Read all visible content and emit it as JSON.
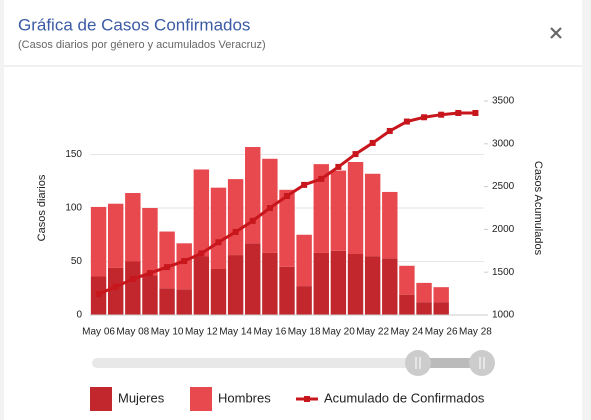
{
  "chart_data": {
    "type": "bar",
    "title": "Gráfica de Casos Confirmados",
    "subtitle": "(Casos diarios por género y acumulados Veracruz)",
    "y_label": "Casos diarios",
    "y2_label": "Casos Acumulados",
    "categories": [
      "May 06",
      null,
      "May 08",
      null,
      "May 10",
      null,
      "May 12",
      null,
      "May 14",
      null,
      "May 16",
      null,
      "May 18",
      null,
      "May 20",
      null,
      "May 22",
      null,
      "May 24",
      null,
      "May 26",
      null,
      "May 28"
    ],
    "series": [
      {
        "name": "Mujeres",
        "color": "#c1272d",
        "type": "bar",
        "values": [
          36,
          44,
          50,
          37,
          25,
          24,
          55,
          43,
          56,
          67,
          58,
          45,
          27,
          58,
          60,
          57,
          55,
          53,
          19,
          12,
          12,
          null,
          null
        ]
      },
      {
        "name": "Hombres",
        "color": "#e8494e",
        "type": "bar",
        "values": [
          65,
          60,
          64,
          63,
          53,
          43,
          81,
          76,
          71,
          90,
          88,
          72,
          48,
          83,
          75,
          86,
          77,
          62,
          27,
          18,
          14,
          null,
          null
        ]
      },
      {
        "name": "Acumulado de Confirmados",
        "color": "#c8161d",
        "type": "line",
        "axis": "y2",
        "values": [
          1245,
          1330,
          1420,
          1490,
          1560,
          1630,
          1720,
          1850,
          1970,
          2100,
          2250,
          2390,
          2520,
          2590,
          2730,
          2880,
          3010,
          3150,
          3260,
          3310,
          3340,
          3360,
          3360
        ]
      }
    ],
    "stacked": true,
    "ylim": [
      0,
      200
    ],
    "yticks": [
      0,
      50,
      100,
      150
    ],
    "y2lim": [
      1000,
      3500
    ],
    "y2ticks": [
      1000,
      1500,
      2000,
      2500,
      3000,
      3500
    ],
    "grid": true,
    "legend": "bottom"
  }
}
